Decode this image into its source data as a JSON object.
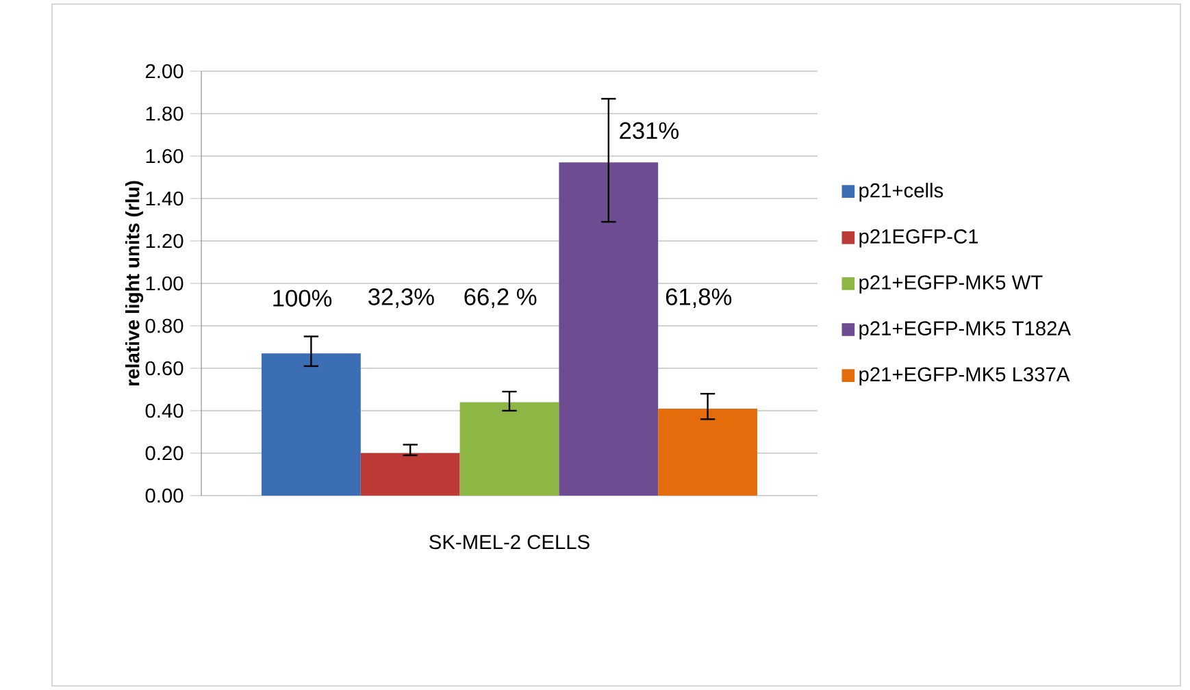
{
  "chart_data": {
    "type": "bar",
    "ylabel": "relative light units (rlu)",
    "categories": [
      "SK-MEL-2 CELLS"
    ],
    "series": [
      {
        "name": "p21+cells",
        "color": "#3c6eb4",
        "values": [
          0.67
        ],
        "errors": [
          [
            0.61,
            0.75
          ]
        ]
      },
      {
        "name": "p21EGFP-C1",
        "color": "#be3a36",
        "values": [
          0.2
        ],
        "errors": [
          [
            0.19,
            0.24
          ]
        ]
      },
      {
        "name": "p21+EGFP-MK5 WT",
        "color": "#8db644",
        "values": [
          0.44
        ],
        "errors": [
          [
            0.4,
            0.49
          ]
        ]
      },
      {
        "name": "p21+EGFP-MK5 T182A",
        "color": "#6e4c91",
        "values": [
          1.57
        ],
        "errors": [
          [
            1.29,
            1.87
          ]
        ]
      },
      {
        "name": "p21+EGFP-MK5 L337A",
        "color": "#e46c0a",
        "values": [
          0.41
        ],
        "errors": [
          [
            0.36,
            0.48
          ]
        ]
      }
    ],
    "annotations": [
      "100%",
      "32,3%",
      "66,2 %",
      "231%",
      "61,8%"
    ],
    "ylim": [
      0,
      2
    ],
    "yticks": [
      {
        "value": 0,
        "label": "0.00"
      },
      {
        "value": 0.2,
        "label": "0.20"
      },
      {
        "value": 0.4,
        "label": "0.40"
      },
      {
        "value": 0.6,
        "label": "0.60"
      },
      {
        "value": 0.8,
        "label": "0.80"
      },
      {
        "value": 1,
        "label": "1.00"
      },
      {
        "value": 1.2,
        "label": "1.20"
      },
      {
        "value": 1.4,
        "label": "1.40"
      },
      {
        "value": 1.6,
        "label": "1.60"
      },
      {
        "value": 1.8,
        "label": "1.80"
      },
      {
        "value": 2,
        "label": "2.00"
      }
    ],
    "grid": "y",
    "legend": "right"
  }
}
